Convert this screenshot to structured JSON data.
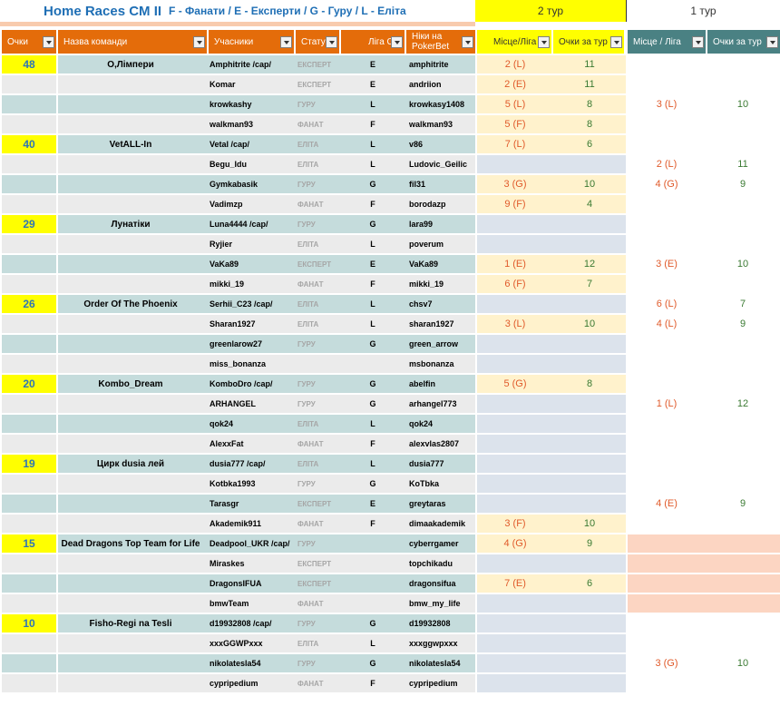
{
  "title": {
    "main": "Home Races CM II",
    "legend": "F - Фанати / E - Експерти /  G - Гуру /  L - Еліта"
  },
  "rounds": {
    "round2": "2 тур",
    "round1": "1 тур"
  },
  "headers": {
    "points": "Очки",
    "team": "Назва команди",
    "members": "Учасники",
    "status": "Статус",
    "league": "Ліга CM",
    "nicks": "Ніки на PokerBet",
    "r2_place": "Місце/Ліга",
    "r2_points": "Очки за тур",
    "r1_place": "Місце / Ліга",
    "r1_points": "Очки за тур"
  },
  "colors": {
    "row_teal": "#c5dcdc",
    "row_gray": "#ebebeb",
    "round2_filled": "#fff2cc",
    "round2_empty": "#dce3ec",
    "round1_pink": "#fcd5c2",
    "score_yellow": "#ffff00",
    "header_orange": "#e46c0a",
    "header_teal": "#4a8183"
  },
  "rows": [
    {
      "score": "48",
      "team": "О,Лімпери",
      "member": "Amphitrite /cap/",
      "status": "ЕКСПЕРТ",
      "league": "E",
      "nick": "amphitrite",
      "r2place": "2 (L)",
      "r2pts": "11",
      "r1place": "",
      "r1pts": ""
    },
    {
      "score": "",
      "team": "",
      "member": "Komar",
      "status": "ЕКСПЕРТ",
      "league": "E",
      "nick": "andriion",
      "r2place": "2 (E)",
      "r2pts": "11",
      "r1place": "",
      "r1pts": ""
    },
    {
      "score": "",
      "team": "",
      "member": "krowkashy",
      "status": "ГУРУ",
      "league": "L",
      "nick": "krowkasy1408",
      "r2place": "5 (L)",
      "r2pts": "8",
      "r1place": "3 (L)",
      "r1pts": "10"
    },
    {
      "score": "",
      "team": "",
      "member": "walkman93",
      "status": "ФАНАТ",
      "league": "F",
      "nick": "walkman93",
      "r2place": "5 (F)",
      "r2pts": "8",
      "r1place": "",
      "r1pts": ""
    },
    {
      "score": "40",
      "team": "VetALL-In",
      "member": "Vetal /cap/",
      "status": "ЕЛІТА",
      "league": "L",
      "nick": "v86",
      "r2place": "7 (L)",
      "r2pts": "6",
      "r1place": "",
      "r1pts": ""
    },
    {
      "score": "",
      "team": "",
      "member": "Begu_Idu",
      "status": "ЕЛІТА",
      "league": "L",
      "nick": "Ludovic_Geilic",
      "r2place": "",
      "r2pts": "",
      "r1place": "2 (L)",
      "r1pts": "11"
    },
    {
      "score": "",
      "team": "",
      "member": "Gymkabasik",
      "status": "ГУРУ",
      "league": "G",
      "nick": "fil31",
      "r2place": "3 (G)",
      "r2pts": "10",
      "r1place": "4 (G)",
      "r1pts": "9"
    },
    {
      "score": "",
      "team": "",
      "member": "Vadimzp",
      "status": "ФАНАТ",
      "league": "F",
      "nick": "borodazp",
      "r2place": "9 (F)",
      "r2pts": "4",
      "r1place": "",
      "r1pts": ""
    },
    {
      "score": "29",
      "team": "Лунатіки",
      "member": "Luna4444 /cap/",
      "status": "ГУРУ",
      "league": "G",
      "nick": "lara99",
      "r2place": "",
      "r2pts": "",
      "r1place": "",
      "r1pts": ""
    },
    {
      "score": "",
      "team": "",
      "member": "Ryjier",
      "status": "ЕЛІТА",
      "league": "L",
      "nick": "poverum",
      "r2place": "",
      "r2pts": "",
      "r1place": "",
      "r1pts": ""
    },
    {
      "score": "",
      "team": "",
      "member": "VaKa89",
      "status": "ЕКСПЕРТ",
      "league": "E",
      "nick": "VaKa89",
      "r2place": "1 (E)",
      "r2pts": "12",
      "r1place": "3 (E)",
      "r1pts": "10"
    },
    {
      "score": "",
      "team": "",
      "member": "mikki_19",
      "status": "ФАНАТ",
      "league": "F",
      "nick": "mikki_19",
      "r2place": "6 (F)",
      "r2pts": "7",
      "r1place": "",
      "r1pts": ""
    },
    {
      "score": "26",
      "team": "Order Of The Phoenix",
      "member": "Serhii_C23 /cap/",
      "status": "ЕЛІТА",
      "league": "L",
      "nick": "chsv7",
      "r2place": "",
      "r2pts": "",
      "r1place": "6 (L)",
      "r1pts": "7"
    },
    {
      "score": "",
      "team": "",
      "member": "Sharan1927",
      "status": "ЕЛІТА",
      "league": "L",
      "nick": "sharan1927",
      "r2place": "3 (L)",
      "r2pts": "10",
      "r1place": "4 (L)",
      "r1pts": "9"
    },
    {
      "score": "",
      "team": "",
      "member": "greenlarow27",
      "status": "ГУРУ",
      "league": "G",
      "nick": "green_arrow",
      "r2place": "",
      "r2pts": "",
      "r1place": "",
      "r1pts": ""
    },
    {
      "score": "",
      "team": "",
      "member": "miss_bonanza",
      "status": "",
      "league": "",
      "nick": "msbonanza",
      "r2place": "",
      "r2pts": "",
      "r1place": "",
      "r1pts": ""
    },
    {
      "score": "20",
      "team": "Kombo_Dream",
      "member": "KomboDro /cap/",
      "status": "ГУРУ",
      "league": "G",
      "nick": "abelfin",
      "r2place": "5 (G)",
      "r2pts": "8",
      "r1place": "",
      "r1pts": ""
    },
    {
      "score": "",
      "team": "",
      "member": "ARHANGEL",
      "status": "ГУРУ",
      "league": "G",
      "nick": "arhangel773",
      "r2place": "",
      "r2pts": "",
      "r1place": "1 (L)",
      "r1pts": "12"
    },
    {
      "score": "",
      "team": "",
      "member": "qok24",
      "status": "ЕЛІТА",
      "league": "L",
      "nick": "qok24",
      "r2place": "",
      "r2pts": "",
      "r1place": "",
      "r1pts": ""
    },
    {
      "score": "",
      "team": "",
      "member": "AlexxFat",
      "status": "ФАНАТ",
      "league": "F",
      "nick": "alexvlas2807",
      "r2place": "",
      "r2pts": "",
      "r1place": "",
      "r1pts": ""
    },
    {
      "score": "19",
      "team": "Цирк dusia лей",
      "member": "dusia777 /cap/",
      "status": "ЕЛІТА",
      "league": "L",
      "nick": "dusia777",
      "r2place": "",
      "r2pts": "",
      "r1place": "",
      "r1pts": ""
    },
    {
      "score": "",
      "team": "",
      "member": "Kotbka1993",
      "status": "ГУРУ",
      "league": "G",
      "nick": "KoTbka",
      "r2place": "",
      "r2pts": "",
      "r1place": "",
      "r1pts": ""
    },
    {
      "score": "",
      "team": "",
      "member": "Tarasgr",
      "status": "ЕКСПЕРТ",
      "league": "E",
      "nick": "greytaras",
      "r2place": "",
      "r2pts": "",
      "r1place": "4 (E)",
      "r1pts": "9"
    },
    {
      "score": "",
      "team": "",
      "member": "Akademik911",
      "status": "ФАНАТ",
      "league": "F",
      "nick": "dimaakademik",
      "r2place": "3 (F)",
      "r2pts": "10",
      "r1place": "",
      "r1pts": ""
    },
    {
      "score": "15",
      "team": "Dead Dragons Top Team for Life",
      "member": "Deadpool_UKR /cap/",
      "status": "ГУРУ",
      "league": "",
      "nick": "cyberrgamer",
      "r2place": "4 (G)",
      "r2pts": "9",
      "r1place": "",
      "r1pts": ""
    },
    {
      "score": "",
      "team": "",
      "member": "Miraskes",
      "status": "ЕКСПЕРТ",
      "league": "",
      "nick": "topchikadu",
      "r2place": "",
      "r2pts": "",
      "r1place": "",
      "r1pts": ""
    },
    {
      "score": "",
      "team": "",
      "member": "DragonsIFUA",
      "status": "ЕКСПЕРТ",
      "league": "",
      "nick": "dragonsifua",
      "r2place": "7 (E)",
      "r2pts": "6",
      "r1place": "",
      "r1pts": ""
    },
    {
      "score": "",
      "team": "",
      "member": "bmwTeam",
      "status": "ФАНАТ",
      "league": "",
      "nick": "bmw_my_life",
      "r2place": "",
      "r2pts": "",
      "r1place": "",
      "r1pts": ""
    },
    {
      "score": "10",
      "team": "Fisho-Regi na Tesli",
      "member": "d19932808 /cap/",
      "status": "ГУРУ",
      "league": "G",
      "nick": "d19932808",
      "r2place": "",
      "r2pts": "",
      "r1place": "",
      "r1pts": ""
    },
    {
      "score": "",
      "team": "",
      "member": "xxxGGWPxxx",
      "status": "ЕЛІТА",
      "league": "L",
      "nick": "xxxggwpxxx",
      "r2place": "",
      "r2pts": "",
      "r1place": "",
      "r1pts": ""
    },
    {
      "score": "",
      "team": "",
      "member": "nikolatesla54",
      "status": "ГУРУ",
      "league": "G",
      "nick": "nikolatesla54",
      "r2place": "",
      "r2pts": "",
      "r1place": "3 (G)",
      "r1pts": "10"
    },
    {
      "score": "",
      "team": "",
      "member": "cypripedium",
      "status": "ФАНАТ",
      "league": "F",
      "nick": "cypripedium",
      "r2place": "",
      "r2pts": "",
      "r1place": "",
      "r1pts": ""
    }
  ]
}
